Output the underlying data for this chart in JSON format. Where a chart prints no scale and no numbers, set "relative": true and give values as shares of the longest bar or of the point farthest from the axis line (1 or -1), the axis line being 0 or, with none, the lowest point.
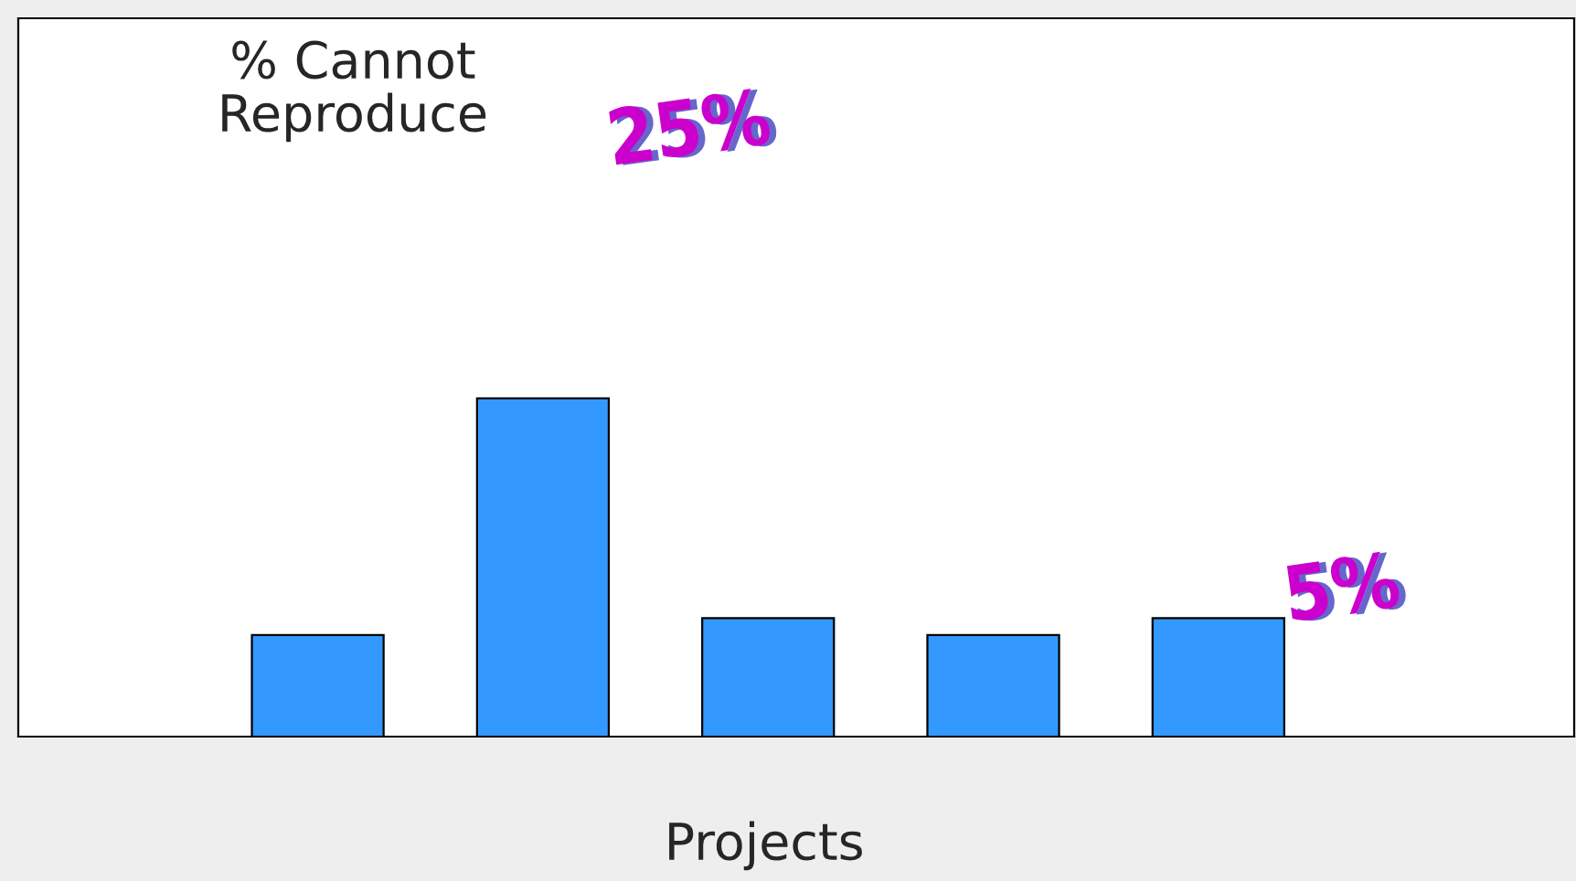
{
  "chart_data": {
    "type": "bar",
    "relative": true,
    "xlabel": "Projects",
    "categories": [
      null,
      null,
      null,
      null,
      null
    ],
    "values": [
      0.3,
      1,
      0.35,
      0.3,
      0.35
    ],
    "color": "#3399ff",
    "annotations": [
      "% Cannot Reproduce",
      "25%",
      "5%"
    ],
    "grid": false
  }
}
